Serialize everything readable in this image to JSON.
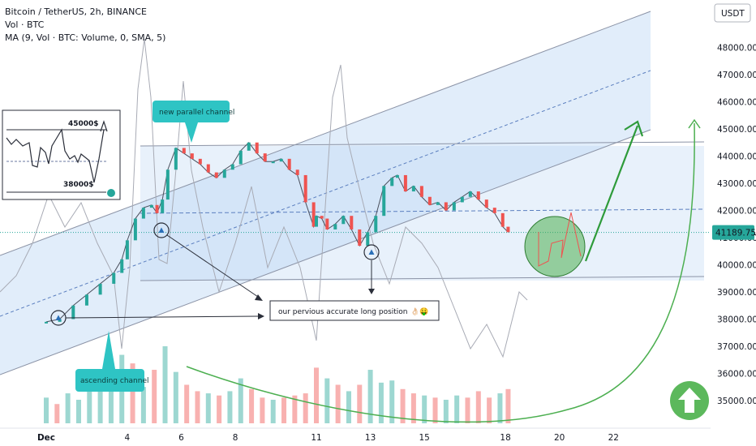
{
  "legend": {
    "title": "Bitcoin / TetherUS, 2h, BINANCE",
    "volume": "Vol · BTC",
    "ma": "MA (9, Vol · BTC: Volume, 0, SMA, 5)"
  },
  "currency_label": "USDT",
  "annotations": {
    "new_channel": "new parallel channel",
    "ascending_channel": "ascending channel",
    "long_position": "our pervious accurate long position",
    "long_position_emoji": "👌🏻🤑",
    "inset_high": "45000$",
    "inset_low": "38000$"
  },
  "colors": {
    "up": "#26a69a",
    "down": "#ef5350",
    "channel_fill": "#d4e6f9",
    "annotation_box": "#2ec4c4",
    "green_arrow": "#2e9b3a",
    "price_badge": "#26a69a"
  },
  "icons": {
    "up_arrow": "up-arrow-icon",
    "triangle_marker": "triangle-marker-icon"
  },
  "chart_data": {
    "type": "line",
    "title": "Bitcoin / TetherUS, 2h, BINANCE",
    "xlabel": "",
    "ylabel": "",
    "last_price": "41189.75",
    "ylim": [
      34000,
      49500
    ],
    "y_ticks": [
      35000,
      36000,
      37000,
      38000,
      39000,
      40000,
      41000,
      42000,
      43000,
      44000,
      45000,
      46000,
      47000,
      48000
    ],
    "y_tick_labels": [
      "35000.00",
      "36000.00",
      "37000.00",
      "38000.00",
      "39000.00",
      "40000.00",
      "41000.00",
      "42000.00",
      "43000.00",
      "44000.00",
      "45000.00",
      "46000.00",
      "47000.00",
      "48000.00"
    ],
    "x_tick_labels": [
      "Dec",
      "4",
      "6",
      "8",
      "11",
      "13",
      "15",
      "18",
      "20",
      "22"
    ],
    "x_tick_days": [
      1,
      4,
      6,
      8,
      11,
      13,
      15,
      18,
      20,
      22
    ],
    "series": [
      {
        "name": "BTCUSDT",
        "x": [
          1.0,
          1.5,
          2.0,
          2.5,
          3.0,
          3.5,
          3.8,
          4.0,
          4.3,
          4.6,
          4.9,
          5.1,
          5.3,
          5.5,
          5.8,
          6.1,
          6.4,
          6.7,
          7.0,
          7.3,
          7.6,
          7.9,
          8.2,
          8.5,
          8.8,
          9.1,
          9.4,
          9.7,
          10.0,
          10.3,
          10.6,
          10.9,
          11.0,
          11.2,
          11.4,
          11.7,
          12.0,
          12.3,
          12.6,
          12.9,
          13.2,
          13.5,
          13.8,
          14.0,
          14.3,
          14.6,
          14.9,
          15.2,
          15.5,
          15.8,
          16.1,
          16.4,
          16.7,
          17.0,
          17.3,
          17.6,
          17.9,
          18.1
        ],
        "y": [
          37900,
          38000,
          38500,
          38900,
          39300,
          39700,
          40200,
          40900,
          41700,
          42100,
          42200,
          41900,
          42400,
          43500,
          44300,
          44100,
          43900,
          43700,
          43400,
          43200,
          43500,
          43700,
          44200,
          44500,
          44100,
          43800,
          43800,
          43900,
          43500,
          43300,
          42300,
          41400,
          41800,
          41700,
          41300,
          41500,
          41800,
          41300,
          40700,
          41200,
          41800,
          42900,
          43200,
          43300,
          42700,
          42900,
          42500,
          42200,
          42300,
          42000,
          42300,
          42500,
          42700,
          42400,
          42100,
          41900,
          41400,
          41200
        ]
      }
    ],
    "volume": {
      "x": [
        1.0,
        1.4,
        1.8,
        2.2,
        2.6,
        3.0,
        3.4,
        3.8,
        4.2,
        4.6,
        5.0,
        5.4,
        5.8,
        6.2,
        6.6,
        7.0,
        7.4,
        7.8,
        8.2,
        8.6,
        9.0,
        9.4,
        9.8,
        10.2,
        10.6,
        11.0,
        11.4,
        11.8,
        12.2,
        12.6,
        13.0,
        13.4,
        13.8,
        14.2,
        14.6,
        15.0,
        15.4,
        15.8,
        16.2,
        16.6,
        17.0,
        17.4,
        17.8,
        18.1
      ],
      "values": [
        1200,
        900,
        1400,
        1100,
        1600,
        1900,
        2400,
        3200,
        2800,
        1700,
        2500,
        3600,
        2400,
        1800,
        1500,
        1400,
        1300,
        1500,
        2100,
        1600,
        1200,
        1100,
        1200,
        1300,
        1400,
        2600,
        2100,
        1800,
        1500,
        1800,
        2500,
        1900,
        2000,
        1600,
        1400,
        1300,
        1200,
        1100,
        1300,
        1200,
        1500,
        1200,
        1400,
        1600
      ],
      "up": [
        true,
        false,
        true,
        true,
        true,
        true,
        true,
        true,
        false,
        true,
        false,
        true,
        true,
        false,
        false,
        true,
        false,
        true,
        true,
        false,
        false,
        true,
        false,
        false,
        false,
        false,
        true,
        false,
        true,
        false,
        true,
        true,
        true,
        false,
        false,
        true,
        false,
        true,
        true,
        false,
        false,
        false,
        true,
        false
      ]
    }
  }
}
